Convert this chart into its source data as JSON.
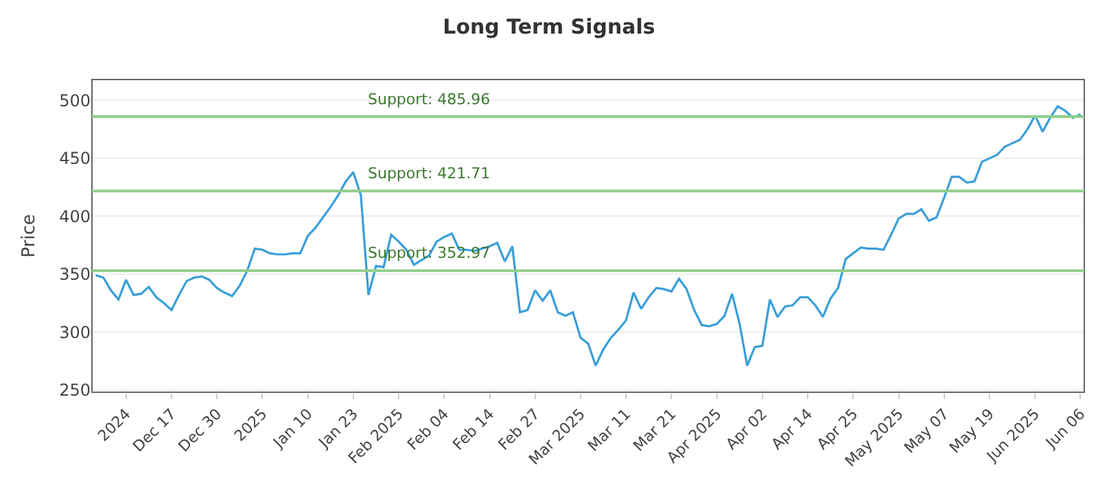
{
  "chart_data": {
    "type": "line",
    "title": "Long Term Signals",
    "ylabel": "Price",
    "categories": [
      null,
      null,
      null,
      null,
      "2024",
      null,
      null,
      null,
      null,
      null,
      "Dec 17",
      null,
      null,
      null,
      null,
      null,
      "Dec 30",
      null,
      null,
      null,
      null,
      null,
      "2025",
      null,
      null,
      null,
      null,
      null,
      "Jan 10",
      null,
      null,
      null,
      null,
      null,
      "Jan 23",
      null,
      null,
      null,
      null,
      null,
      "Feb 2025",
      null,
      null,
      null,
      null,
      null,
      "Feb 04",
      null,
      null,
      null,
      null,
      null,
      "Feb 14",
      null,
      null,
      null,
      null,
      null,
      "Feb 27",
      null,
      null,
      null,
      null,
      null,
      "Mar 2025",
      null,
      null,
      null,
      null,
      null,
      "Mar 11",
      null,
      null,
      null,
      null,
      null,
      "Mar 21",
      null,
      null,
      null,
      null,
      null,
      "Apr 2025",
      null,
      null,
      null,
      null,
      null,
      "Apr 02",
      null,
      null,
      null,
      null,
      null,
      "Apr 14",
      null,
      null,
      null,
      null,
      null,
      "Apr 25",
      null,
      null,
      null,
      null,
      null,
      "May 2025",
      null,
      null,
      null,
      null,
      null,
      "May 07",
      null,
      null,
      null,
      null,
      null,
      "May 19",
      null,
      null,
      null,
      null,
      null,
      "Jun 2025",
      null,
      null,
      null,
      null,
      null,
      "Jun 06"
    ],
    "ylim": [
      248,
      518
    ],
    "yticks": [
      250,
      300,
      350,
      400,
      450,
      500
    ],
    "grid": "y",
    "marker": "none",
    "line_style": "solid",
    "series": [
      {
        "color": "#3a9fd8",
        "values": [
          349,
          347,
          336,
          328,
          345,
          332,
          333,
          339,
          330,
          325,
          319,
          332,
          344,
          347,
          348,
          345,
          338,
          334,
          331,
          340,
          353,
          372,
          371,
          368,
          367,
          367,
          368,
          368,
          383,
          390,
          399,
          408,
          418,
          430,
          438,
          418,
          332,
          357,
          356,
          384,
          378,
          371,
          358,
          362,
          366,
          378,
          382,
          385,
          371,
          371,
          370,
          372,
          374,
          377,
          361,
          374,
          317,
          319,
          336,
          327,
          336,
          317,
          314,
          317,
          295,
          290,
          271,
          285,
          295,
          302,
          310,
          334,
          320,
          330,
          338,
          337,
          335,
          346,
          337,
          319,
          306,
          305,
          307,
          314,
          333,
          307,
          271,
          287,
          288,
          328,
          313,
          322,
          323,
          330,
          330,
          323,
          313,
          329,
          338,
          363,
          368,
          373,
          372,
          372,
          371,
          384,
          398,
          402,
          402,
          406,
          396,
          399,
          416,
          434,
          434,
          429,
          430,
          447,
          450,
          453,
          460,
          463,
          466,
          475,
          487,
          473,
          485,
          495,
          491,
          485,
          488
        ]
      }
    ],
    "ref_lines": [
      {
        "axis": "y",
        "value": 485.96,
        "label": "Support: 485.96",
        "color": "#8fcf8a"
      },
      {
        "axis": "y",
        "value": 421.71,
        "label": "Support: 421.71",
        "color": "#8fcf8a"
      },
      {
        "axis": "y",
        "value": 352.97,
        "label": "Support: 352.97",
        "color": "#8fcf8a"
      }
    ]
  }
}
